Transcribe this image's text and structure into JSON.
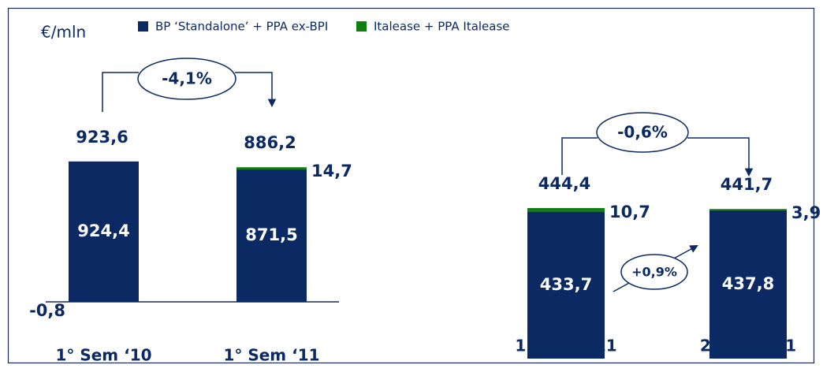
{
  "unit_label": "€/mln",
  "chart_data": [
    {
      "type": "bar",
      "stacked": true,
      "categories": [
        "1° Sem ‘10",
        "1° Sem ‘11"
      ],
      "series": [
        {
          "name": "BP ‘Standalone’ + PPA ex-BPI",
          "color": "#0b2a63",
          "values": [
            924.4,
            871.5
          ],
          "value_labels": [
            "924,4",
            "871,5"
          ]
        },
        {
          "name": "Italease + PPA Italease",
          "color": "#0f7f14",
          "values": [
            -0.8,
            14.7
          ],
          "value_labels": [
            "-0,8",
            "14,7"
          ]
        }
      ],
      "totals": [
        923.6,
        886.2
      ],
      "total_labels": [
        "923,6",
        "886,2"
      ],
      "annotations": [
        "-4,1%"
      ]
    },
    {
      "type": "bar",
      "stacked": true,
      "categories": [
        "1° Trim  ‘11",
        "2° Trim ‘11"
      ],
      "series": [
        {
          "color": "#0b2a63",
          "values": [
            433.7,
            437.8
          ],
          "value_labels": [
            "433,7",
            "437,8"
          ]
        },
        {
          "color": "#0f7f14",
          "values": [
            10.7,
            3.9
          ],
          "value_labels": [
            "10,7",
            "3,9"
          ]
        }
      ],
      "totals": [
        444.4,
        441.7
      ],
      "total_labels": [
        "444,4",
        "441,7"
      ],
      "annotations": [
        "-0,6%",
        "+0,9%"
      ]
    }
  ]
}
